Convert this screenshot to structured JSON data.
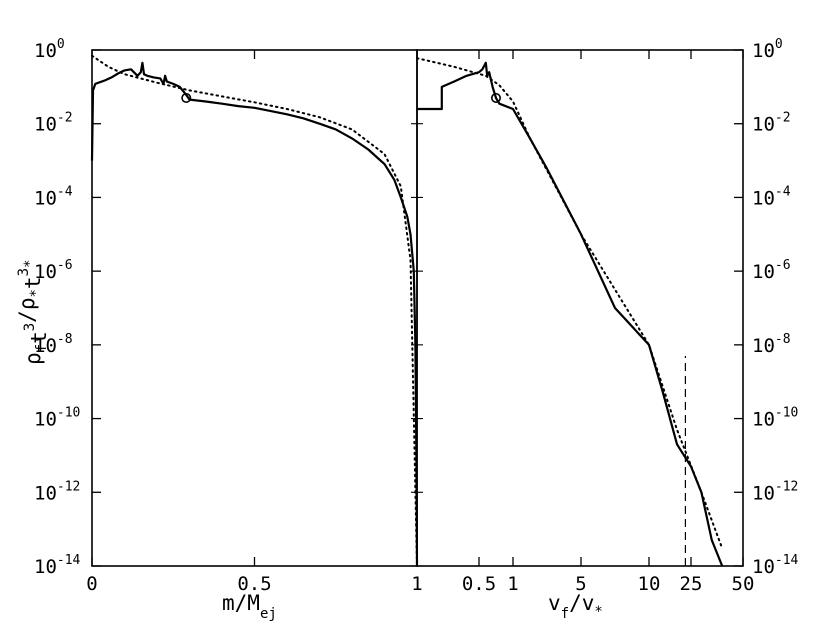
{
  "chart_data": [
    {
      "type": "line",
      "panel": "left",
      "xlabel": {
        "main": "m/M",
        "sub": "ej"
      },
      "ylabel": {
        "parts": [
          {
            "t": "ρ",
            "k": "n"
          },
          {
            "t": "f",
            "k": "sub"
          },
          {
            "t": "t",
            "k": "n"
          },
          {
            "t": "3",
            "k": "sup"
          },
          {
            "t": "/ρ",
            "k": "n"
          },
          {
            "t": "*",
            "k": "sub"
          },
          {
            "t": "t",
            "k": "n"
          },
          {
            "t": "3",
            "k": "sup"
          },
          {
            "t": "*",
            "k": "sub"
          }
        ]
      },
      "x_scale": "linear",
      "xlim": [
        0,
        1
      ],
      "xticks": [
        0,
        0.5,
        1
      ],
      "xtick_labels": [
        "0",
        "0.5",
        "1"
      ],
      "y_scale": "log",
      "ylim": [
        1e-14,
        1
      ],
      "ytick_exponents": [
        0,
        -2,
        -4,
        -6,
        -8,
        -10,
        -12,
        -14
      ],
      "ytick_base": "10",
      "series": [
        {
          "style": "solid",
          "x": [
            0.0,
            0.003,
            0.01,
            0.02,
            0.04,
            0.06,
            0.08,
            0.1,
            0.12,
            0.14,
            0.15,
            0.155,
            0.16,
            0.17,
            0.19,
            0.21,
            0.22,
            0.225,
            0.23,
            0.25,
            0.27,
            0.29,
            0.3,
            0.35,
            0.4,
            0.45,
            0.5,
            0.55,
            0.6,
            0.65,
            0.7,
            0.75,
            0.8,
            0.85,
            0.9,
            0.93,
            0.95,
            0.97,
            0.98,
            0.99,
            0.995,
            0.998,
            1.0
          ],
          "y": [
            0.001,
            0.08,
            0.12,
            0.13,
            0.15,
            0.18,
            0.23,
            0.28,
            0.3,
            0.2,
            0.25,
            0.45,
            0.22,
            0.2,
            0.18,
            0.17,
            0.12,
            0.2,
            0.14,
            0.12,
            0.1,
            0.06,
            0.045,
            0.04,
            0.035,
            0.03,
            0.027,
            0.022,
            0.018,
            0.014,
            0.01,
            0.007,
            0.004,
            0.002,
            0.0008,
            0.0003,
            0.0001,
            3e-05,
            1e-05,
            1e-06,
            1e-08,
            1e-11,
            1e-14
          ]
        },
        {
          "style": "dotted",
          "x": [
            0.0,
            0.05,
            0.1,
            0.2,
            0.3,
            0.4,
            0.5,
            0.6,
            0.7,
            0.8,
            0.9,
            0.95,
            0.98,
            1.0
          ],
          "y": [
            0.7,
            0.35,
            0.22,
            0.13,
            0.08,
            0.055,
            0.038,
            0.025,
            0.015,
            0.007,
            0.0015,
            0.0002,
            2e-06,
            1e-14
          ]
        }
      ],
      "markers": [
        {
          "shape": "circle",
          "x": 0.29,
          "y": 0.05
        }
      ]
    },
    {
      "type": "line",
      "panel": "right",
      "xlabel": {
        "main": "v",
        "sub": "f",
        "rest": "/v",
        "sub2": "*"
      },
      "x_scale": "custom",
      "xlim": [
        0,
        50
      ],
      "xticks": [
        0.5,
        1,
        5,
        10,
        25,
        50
      ],
      "xtick_labels": [
        "0.5",
        "1",
        "5",
        "10",
        "25",
        "50"
      ],
      "y_scale": "log",
      "ylim": [
        1e-14,
        1
      ],
      "ytick_exponents": [
        0,
        -2,
        -4,
        -6,
        -8,
        -10,
        -12,
        -14
      ],
      "ytick_base": "10",
      "series": [
        {
          "style": "solid",
          "x": [
            0.0,
            0.2,
            0.2,
            0.3,
            0.4,
            0.5,
            0.55,
            0.6,
            0.62,
            0.65,
            0.7,
            0.75,
            0.8,
            1.0,
            1.5,
            2.0,
            3.0,
            5.0,
            7.5,
            10.0,
            15.0,
            20.0,
            25.0,
            30.0,
            35.0,
            40.0
          ],
          "y": [
            0.025,
            0.025,
            0.1,
            0.14,
            0.2,
            0.25,
            0.3,
            0.45,
            0.2,
            0.25,
            0.1,
            0.05,
            0.035,
            0.025,
            0.01,
            0.004,
            0.0006,
            1e-05,
            1e-07,
            1e-08,
            5e-10,
            2e-11,
            5e-12,
            1e-12,
            5e-14,
            5e-15
          ]
        },
        {
          "style": "dotted",
          "x": [
            0.0,
            0.3,
            0.6,
            0.8,
            1.0,
            2.0,
            5.0,
            10.0,
            20.0,
            30.0,
            40.0
          ],
          "y": [
            0.6,
            0.35,
            0.2,
            0.11,
            0.04,
            0.004,
            1e-05,
            1e-08,
            5e-11,
            1e-12,
            3e-14
          ]
        },
        {
          "style": "dashed",
          "x": [
            23.0,
            23.0
          ],
          "y": [
            1e-14,
            5e-09
          ]
        }
      ],
      "markers": [
        {
          "shape": "circle",
          "x": 0.75,
          "y": 0.05
        }
      ]
    }
  ]
}
